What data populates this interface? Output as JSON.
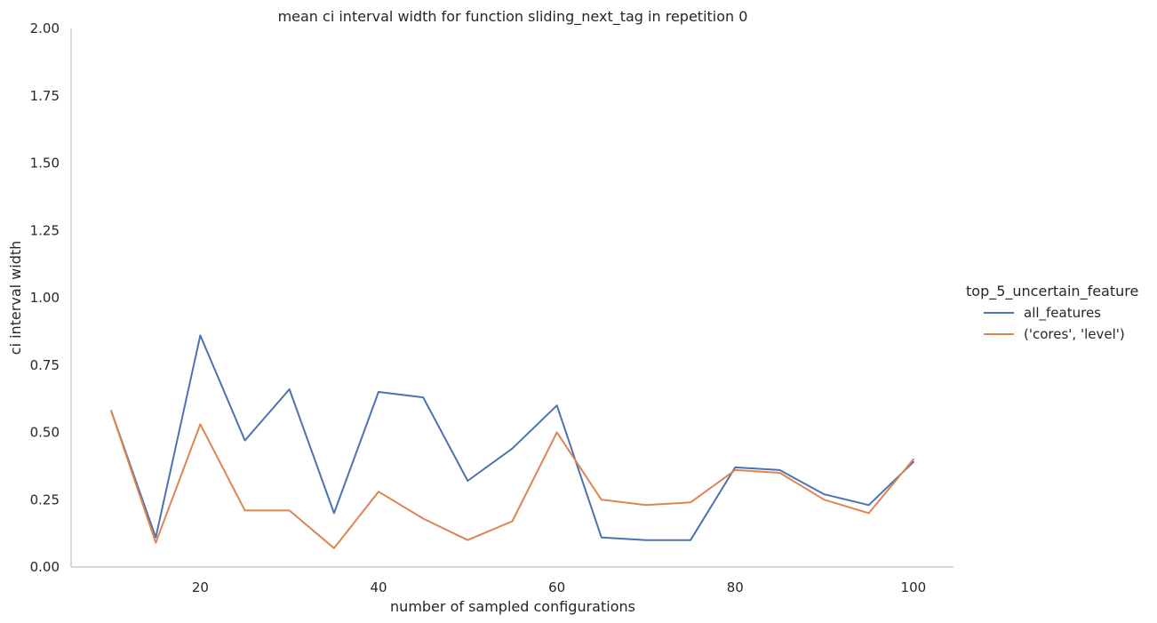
{
  "chart_data": {
    "type": "line",
    "title": "mean ci interval width for function sliding_next_tag in repetition 0",
    "xlabel": "number of sampled configurations",
    "ylabel": "ci interval width",
    "xlim": [
      5.5,
      104.5
    ],
    "ylim": [
      0,
      2
    ],
    "xticks": [
      20,
      40,
      60,
      80,
      100
    ],
    "xtick_labels": [
      "20",
      "40",
      "60",
      "80",
      "100"
    ],
    "yticks": [
      0,
      0.25,
      0.5,
      0.75,
      1.0,
      1.25,
      1.5,
      1.75,
      2.0
    ],
    "ytick_labels": [
      "0.00",
      "0.25",
      "0.50",
      "0.75",
      "1.00",
      "1.25",
      "1.50",
      "1.75",
      "2.00"
    ],
    "grid": false,
    "legend": {
      "title": "top_5_uncertain_feature",
      "position": "right"
    },
    "x": [
      10,
      15,
      20,
      25,
      30,
      35,
      40,
      45,
      50,
      55,
      60,
      65,
      70,
      75,
      80,
      85,
      90,
      95,
      100
    ],
    "series": [
      {
        "name": "all_features",
        "color": "#4c72b0",
        "values": [
          0.58,
          0.11,
          0.86,
          0.47,
          0.66,
          0.2,
          0.65,
          0.63,
          0.32,
          0.44,
          0.6,
          0.11,
          0.1,
          0.1,
          0.37,
          0.36,
          0.27,
          0.23,
          0.39
        ]
      },
      {
        "name": "('cores', 'level')",
        "color": "#dd8452",
        "values": [
          0.58,
          0.09,
          0.53,
          0.21,
          0.21,
          0.07,
          0.28,
          0.18,
          0.1,
          0.17,
          0.5,
          0.25,
          0.23,
          0.24,
          0.36,
          0.35,
          0.25,
          0.2,
          0.4
        ]
      }
    ]
  }
}
